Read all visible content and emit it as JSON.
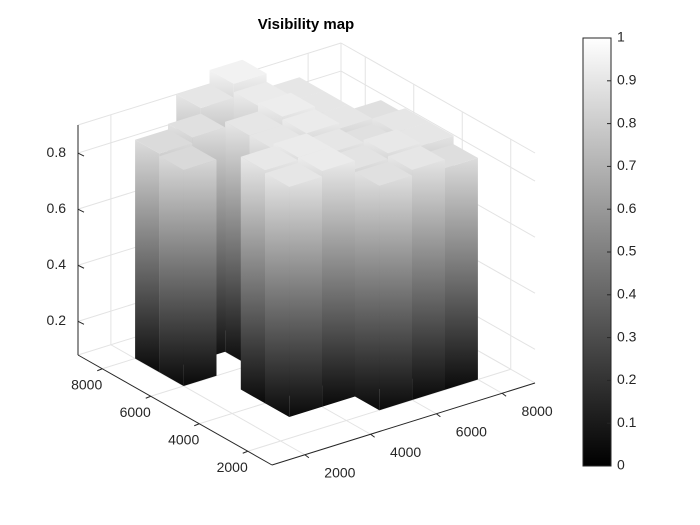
{
  "chart_data": {
    "type": "surface3d",
    "title": "Visibility map",
    "colormap": "gray",
    "x": [
      1500,
      2500,
      3500,
      4500,
      5500,
      6500,
      7500,
      8500
    ],
    "y": [
      1500,
      2500,
      3500,
      4500,
      5500,
      6500,
      7500,
      8500
    ],
    "z": [
      [
        null,
        null,
        null,
        null,
        null,
        null,
        null,
        null
      ],
      [
        null,
        null,
        null,
        null,
        0.88,
        0.9,
        0.87,
        null
      ],
      [
        null,
        null,
        0.9,
        0.92,
        0.89,
        0.91,
        0.9,
        null
      ],
      [
        null,
        null,
        0.91,
        0.92,
        0.9,
        0.88,
        0.9,
        null
      ],
      [
        null,
        null,
        null,
        0.9,
        0.92,
        0.9,
        0.88,
        null
      ],
      [
        null,
        0.85,
        null,
        0.9,
        0.93,
        0.9,
        null,
        null
      ],
      [
        null,
        0.86,
        0.88,
        null,
        0.92,
        0.9,
        null,
        null
      ],
      [
        null,
        null,
        null,
        0.9,
        0.95,
        null,
        null,
        null
      ]
    ],
    "xlim": [
      1000,
      9000
    ],
    "ylim": [
      1000,
      9000
    ],
    "zlim": [
      0.08,
      0.9
    ],
    "xticks": [
      2000,
      4000,
      6000,
      8000
    ],
    "yticks": [
      2000,
      4000,
      6000,
      8000
    ],
    "zticks": [
      0.2,
      0.4,
      0.6,
      0.8
    ],
    "grid": true,
    "colorbar": {
      "clim": [
        0,
        1
      ],
      "ticks": [
        0,
        0.1,
        0.2,
        0.3,
        0.4,
        0.5,
        0.6,
        0.7,
        0.8,
        0.9,
        1
      ]
    }
  }
}
